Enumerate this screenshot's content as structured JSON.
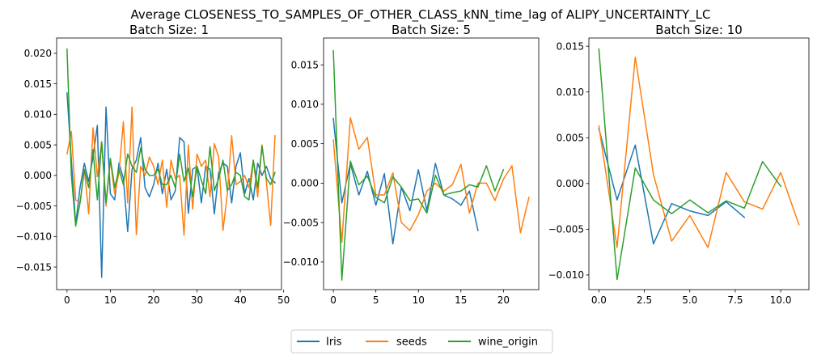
{
  "title": "Average CLOSENESS_TO_SAMPLES_OF_OTHER_CLASS_kNN_time_lag of ALIPY_UNCERTAINTY_LC",
  "legend": {
    "placement": "bottom-center",
    "entries": [
      "Iris",
      "seeds",
      "wine_origin"
    ]
  },
  "colors": {
    "Iris": "#1f77b4",
    "seeds": "#ff7f0e",
    "wine_origin": "#2ca02c"
  },
  "chart_data": [
    {
      "type": "line",
      "title": "Batch Size: 1",
      "xlim": [
        -2.4,
        49.5
      ],
      "ylim": [
        -0.0187,
        0.0225
      ],
      "xticks": [
        0,
        10,
        20,
        30,
        40,
        50
      ],
      "yticks": [
        -0.015,
        -0.01,
        -0.005,
        0.0,
        0.005,
        0.01,
        0.015,
        0.02
      ],
      "ytick_labels": [
        "−0.015",
        "−0.010",
        "−0.005",
        "0.000",
        "0.005",
        "0.010",
        "0.015",
        "0.020"
      ],
      "xtick_labels": [
        "0",
        "10",
        "20",
        "30",
        "40",
        "50"
      ],
      "series": [
        {
          "name": "Iris",
          "values": [
            0.0135,
            0.0025,
            -0.008,
            -0.002,
            0.002,
            -0.001,
            0.003,
            0.0082,
            -0.0167,
            0.0112,
            -0.003,
            -0.004,
            0.002,
            -0.0005,
            -0.0092,
            0.001,
            0.0025,
            0.0062,
            -0.002,
            -0.0035,
            -0.0015,
            0.002,
            -0.003,
            0.001,
            -0.004,
            -0.0025,
            0.0062,
            0.0055,
            -0.0062,
            0.001,
            0.0015,
            -0.0045,
            0.0015,
            0.001,
            -0.0063,
            0.0005,
            0.002,
            0.0015,
            -0.0045,
            0.0015,
            0.0037,
            -0.003,
            -0.0005,
            -0.004,
            0.002,
            0.0,
            0.0015,
            -0.0005,
            -0.0012
          ]
        },
        {
          "name": "seeds",
          "values": [
            0.0035,
            0.0072,
            -0.004,
            -0.0045,
            0.001,
            -0.0063,
            0.0078,
            -0.0002,
            0.0055,
            -0.005,
            0.0025,
            -0.003,
            0.0005,
            0.0088,
            -0.0045,
            0.0112,
            -0.0097,
            0.0015,
            0.0,
            0.003,
            0.0015,
            -0.0015,
            0.0025,
            -0.0052,
            0.0025,
            -0.0005,
            0.0,
            -0.0098,
            0.005,
            -0.0055,
            0.0035,
            0.0015,
            0.0025,
            -0.0035,
            0.0052,
            0.003,
            -0.009,
            -0.003,
            0.0065,
            -0.0015,
            -0.001,
            0.0,
            -0.002,
            0.0025,
            -0.0035,
            0.005,
            -0.001,
            -0.0082,
            0.0065
          ]
        },
        {
          "name": "wine_origin",
          "values": [
            0.0207,
            0.0,
            -0.0083,
            -0.0045,
            0.001,
            -0.002,
            0.0042,
            -0.004,
            0.0055,
            -0.0045,
            0.0028,
            -0.002,
            0.001,
            -0.0015,
            0.0035,
            0.0015,
            0.0005,
            0.0045,
            0.001,
            0.0,
            0.0,
            0.001,
            -0.0015,
            -0.0015,
            0.0,
            -0.002,
            0.0035,
            -0.001,
            0.0012,
            -0.0035,
            0.0015,
            -0.0008,
            -0.003,
            0.0047,
            -0.0025,
            -0.0005,
            0.0025,
            -0.0025,
            -0.0015,
            0.0005,
            0.0,
            -0.0035,
            -0.004,
            0.0025,
            -0.002,
            0.0048,
            -0.0005,
            -0.0015,
            0.0005
          ]
        }
      ]
    },
    {
      "type": "line",
      "title": "Batch Size: 5",
      "xlim": [
        -1.15,
        24.15
      ],
      "ylim": [
        -0.0135,
        0.0184
      ],
      "xticks": [
        0,
        5,
        10,
        15,
        20
      ],
      "yticks": [
        -0.01,
        -0.005,
        0.0,
        0.005,
        0.01,
        0.015
      ],
      "ytick_labels": [
        "−0.010",
        "−0.005",
        "0.000",
        "0.005",
        "0.010",
        "0.015"
      ],
      "xtick_labels": [
        "0",
        "5",
        "10",
        "15",
        "20"
      ],
      "series": [
        {
          "name": "Iris",
          "values": [
            0.0082,
            -0.0025,
            0.0025,
            -0.0015,
            0.0015,
            -0.0028,
            0.0012,
            -0.0077,
            -0.0005,
            -0.0035,
            0.0017,
            -0.0035,
            0.0025,
            -0.0015,
            -0.002,
            -0.0028,
            -0.001,
            -0.006
          ]
        },
        {
          "name": "seeds",
          "values": [
            0.0055,
            -0.0075,
            0.0083,
            0.0043,
            0.0058,
            -0.0015,
            -0.0015,
            0.0013,
            -0.005,
            -0.006,
            -0.004,
            -0.001,
            0.0,
            -0.001,
            -0.0002,
            0.0024,
            -0.0038,
            0.0,
            0.0,
            -0.0022,
            0.0005,
            0.0022,
            -0.0063,
            -0.0018
          ]
        },
        {
          "name": "wine_origin",
          "values": [
            0.0168,
            -0.0123,
            0.0028,
            -0.0002,
            0.0009,
            -0.0018,
            -0.0025,
            0.0008,
            -0.0005,
            -0.0022,
            -0.002,
            -0.0038,
            0.001,
            -0.0015,
            -0.0012,
            -0.001,
            -0.0002,
            -0.0005,
            0.0022,
            -0.001,
            0.0017
          ]
        }
      ]
    },
    {
      "type": "line",
      "title": "Batch Size: 10",
      "xlim": [
        -0.55,
        11.55
      ],
      "ylim": [
        -0.0116,
        0.0159
      ],
      "xticks": [
        0,
        2.5,
        5,
        7.5,
        10
      ],
      "yticks": [
        -0.01,
        -0.005,
        0.0,
        0.005,
        0.01,
        0.015
      ],
      "ytick_labels": [
        "−0.010",
        "−0.005",
        "0.000",
        "0.005",
        "0.010",
        "0.015"
      ],
      "xtick_labels": [
        "0.0",
        "2.5",
        "5.0",
        "7.5",
        "10.0"
      ],
      "series": [
        {
          "name": "Iris",
          "values": [
            0.006,
            -0.0018,
            0.0042,
            -0.0066,
            -0.0022,
            -0.003,
            -0.0035,
            -0.002,
            -0.0037
          ]
        },
        {
          "name": "seeds",
          "values": [
            0.0063,
            -0.007,
            0.0138,
            0.001,
            -0.0063,
            -0.0035,
            -0.007,
            0.0012,
            -0.002,
            -0.0028,
            0.0012,
            -0.0045
          ]
        },
        {
          "name": "wine_origin",
          "values": [
            0.0147,
            -0.0105,
            0.0017,
            -0.0018,
            -0.0033,
            -0.0018,
            -0.0032,
            -0.0019,
            -0.0027,
            0.0024,
            -0.0003
          ]
        }
      ]
    }
  ]
}
